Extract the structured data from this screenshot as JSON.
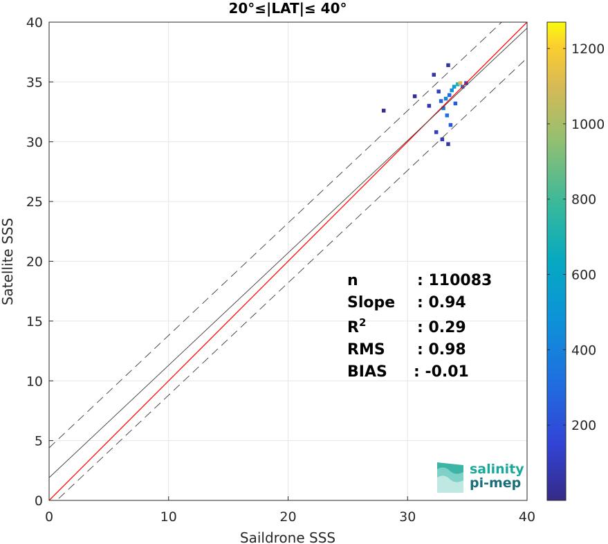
{
  "chart_data": {
    "type": "heatmap",
    "title": "20°≤|LAT|≤ 40°",
    "xlabel": "Saildrone SSS",
    "ylabel": "Satellite SSS",
    "xlim": [
      0,
      40
    ],
    "ylim": [
      0,
      40
    ],
    "xticks": [
      "0",
      "10",
      "20",
      "30",
      "40"
    ],
    "yticks": [
      "0",
      "5",
      "10",
      "15",
      "20",
      "25",
      "30",
      "35",
      "40"
    ],
    "grid": true,
    "density_cells": [
      {
        "x": 32.6,
        "y": 34.2,
        "c": 120
      },
      {
        "x": 32.8,
        "y": 33.4,
        "c": 260
      },
      {
        "x": 33.0,
        "y": 32.8,
        "c": 380
      },
      {
        "x": 33.2,
        "y": 33.6,
        "c": 420
      },
      {
        "x": 33.3,
        "y": 32.2,
        "c": 330
      },
      {
        "x": 33.5,
        "y": 33.9,
        "c": 300
      },
      {
        "x": 33.6,
        "y": 31.4,
        "c": 220
      },
      {
        "x": 33.7,
        "y": 34.3,
        "c": 460
      },
      {
        "x": 33.9,
        "y": 34.6,
        "c": 560
      },
      {
        "x": 34.0,
        "y": 33.2,
        "c": 240
      },
      {
        "x": 34.2,
        "y": 34.8,
        "c": 700
      },
      {
        "x": 34.4,
        "y": 34.9,
        "c": 1100
      },
      {
        "x": 34.6,
        "y": 34.6,
        "c": 360
      },
      {
        "x": 34.9,
        "y": 34.9,
        "c": 140
      },
      {
        "x": 32.4,
        "y": 30.8,
        "c": 110
      },
      {
        "x": 32.9,
        "y": 30.2,
        "c": 90
      },
      {
        "x": 33.4,
        "y": 29.8,
        "c": 70
      },
      {
        "x": 32.2,
        "y": 35.6,
        "c": 60
      },
      {
        "x": 33.4,
        "y": 36.4,
        "c": 50
      },
      {
        "x": 31.8,
        "y": 33.0,
        "c": 80
      },
      {
        "x": 30.6,
        "y": 33.8,
        "c": 30
      },
      {
        "x": 28.0,
        "y": 32.6,
        "c": 15
      }
    ],
    "lines": [
      {
        "name": "one-to-one",
        "color": "#ff0000",
        "style": "solid",
        "x": [
          0,
          40
        ],
        "y": [
          0,
          40
        ]
      },
      {
        "name": "fit",
        "color": "#3a3a3a",
        "style": "solid",
        "x": [
          0,
          40
        ],
        "y": [
          1.9,
          39.5
        ]
      },
      {
        "name": "upper-bound",
        "color": "#3a3a3a",
        "style": "dashed",
        "x": [
          0,
          40
        ],
        "y": [
          4.4,
          42.0
        ]
      },
      {
        "name": "lower-bound",
        "color": "#3a3a3a",
        "style": "dashed",
        "x": [
          0,
          40
        ],
        "y": [
          -0.6,
          37.0
        ]
      }
    ],
    "colorbar": {
      "range": [
        0,
        1270
      ],
      "ticks": [
        "200",
        "400",
        "600",
        "800",
        "1000",
        "1200"
      ],
      "colormap": "parula"
    },
    "stats": [
      {
        "label": "n",
        "value": ": 110083"
      },
      {
        "label": "Slope",
        "value": ": 0.94"
      },
      {
        "label": "R",
        "sup": "2",
        "value": ": 0.29"
      },
      {
        "label": "RMS",
        "value": ": 0.98"
      },
      {
        "label": "BIAS",
        "value": ": -0.01"
      }
    ]
  },
  "logo": {
    "line1": "salinity",
    "line2": "pi-mep",
    "color": "#1aa898"
  }
}
